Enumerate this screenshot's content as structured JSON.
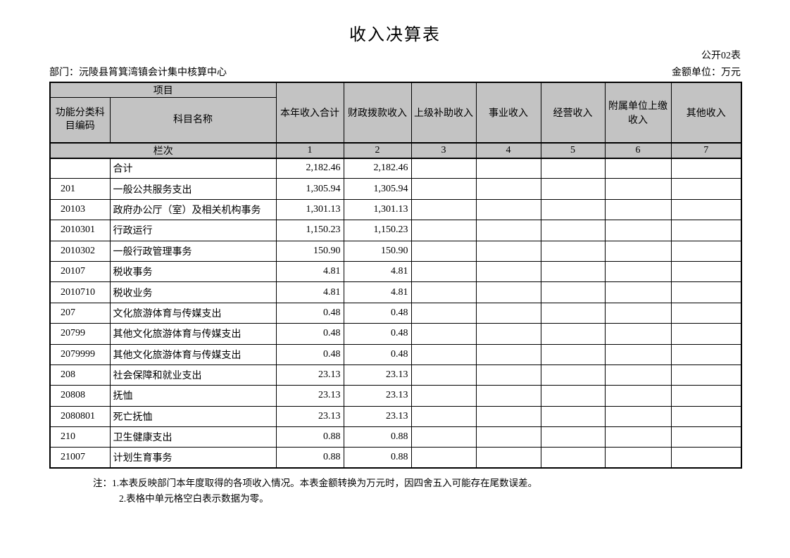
{
  "header": {
    "title": "收入决算表",
    "table_tag": "公开02表",
    "department": "部门：沅陵县筲箕湾镇会计集中核算中心",
    "unit": "金额单位：万元"
  },
  "table": {
    "project_label": "项目",
    "code_label": "功能分类科目编码",
    "name_label": "科目名称",
    "lanci_label": "栏次",
    "columns": [
      {
        "label": "本年收入合计",
        "index": "1"
      },
      {
        "label": "财政拨款收入",
        "index": "2"
      },
      {
        "label": "上级补助收入",
        "index": "3"
      },
      {
        "label": "事业收入",
        "index": "4"
      },
      {
        "label": "经营收入",
        "index": "5"
      },
      {
        "label": "附属单位上缴收入",
        "index": "6"
      },
      {
        "label": "其他收入",
        "index": "7"
      }
    ],
    "rows": [
      {
        "code": "",
        "name": "合计",
        "values": [
          "2,182.46",
          "2,182.46",
          "",
          "",
          "",
          "",
          ""
        ]
      },
      {
        "code": "201",
        "name": "一般公共服务支出",
        "values": [
          "1,305.94",
          "1,305.94",
          "",
          "",
          "",
          "",
          ""
        ]
      },
      {
        "code": "20103",
        "name": "政府办公厅（室）及相关机构事务",
        "values": [
          "1,301.13",
          "1,301.13",
          "",
          "",
          "",
          "",
          ""
        ]
      },
      {
        "code": "2010301",
        "name": "行政运行",
        "values": [
          "1,150.23",
          "1,150.23",
          "",
          "",
          "",
          "",
          ""
        ]
      },
      {
        "code": "2010302",
        "name": "一般行政管理事务",
        "values": [
          "150.90",
          "150.90",
          "",
          "",
          "",
          "",
          ""
        ]
      },
      {
        "code": "20107",
        "name": "税收事务",
        "values": [
          "4.81",
          "4.81",
          "",
          "",
          "",
          "",
          ""
        ]
      },
      {
        "code": "2010710",
        "name": "税收业务",
        "values": [
          "4.81",
          "4.81",
          "",
          "",
          "",
          "",
          ""
        ]
      },
      {
        "code": "207",
        "name": "文化旅游体育与传媒支出",
        "values": [
          "0.48",
          "0.48",
          "",
          "",
          "",
          "",
          ""
        ]
      },
      {
        "code": "20799",
        "name": "其他文化旅游体育与传媒支出",
        "values": [
          "0.48",
          "0.48",
          "",
          "",
          "",
          "",
          ""
        ]
      },
      {
        "code": "2079999",
        "name": "其他文化旅游体育与传媒支出",
        "values": [
          "0.48",
          "0.48",
          "",
          "",
          "",
          "",
          ""
        ]
      },
      {
        "code": "208",
        "name": "社会保障和就业支出",
        "values": [
          "23.13",
          "23.13",
          "",
          "",
          "",
          "",
          ""
        ]
      },
      {
        "code": "20808",
        "name": "抚恤",
        "values": [
          "23.13",
          "23.13",
          "",
          "",
          "",
          "",
          ""
        ]
      },
      {
        "code": "2080801",
        "name": "死亡抚恤",
        "values": [
          "23.13",
          "23.13",
          "",
          "",
          "",
          "",
          ""
        ]
      },
      {
        "code": "210",
        "name": "卫生健康支出",
        "values": [
          "0.88",
          "0.88",
          "",
          "",
          "",
          "",
          ""
        ]
      },
      {
        "code": "21007",
        "name": "计划生育事务",
        "values": [
          "0.88",
          "0.88",
          "",
          "",
          "",
          "",
          ""
        ]
      }
    ]
  },
  "notes": {
    "line1": "注：1.本表反映部门本年度取得的各项收入情况。本表金额转换为万元时，因四舍五入可能存在尾数误差。",
    "line2": "2.表格中单元格空白表示数据为零。"
  },
  "colors": {
    "header_bg": "#c3c3c3",
    "border": "#000000",
    "page_bg": "#ffffff"
  }
}
